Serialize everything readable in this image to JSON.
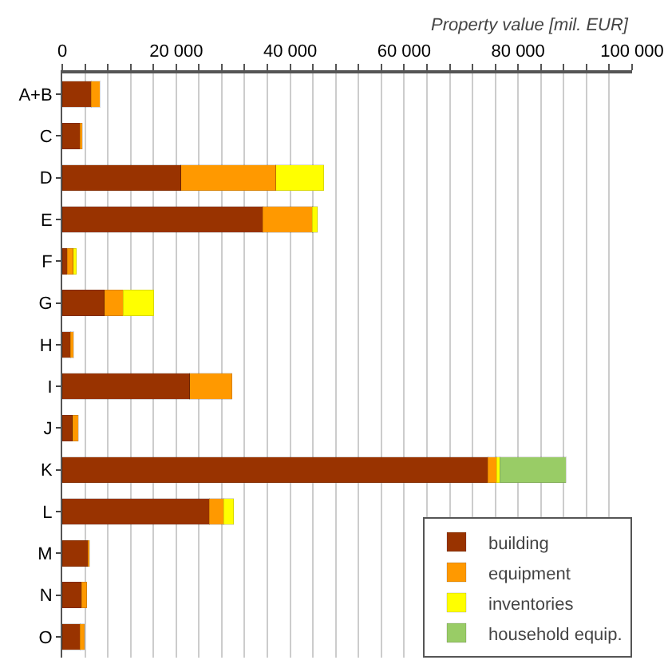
{
  "chart_data": {
    "type": "bar",
    "orientation": "horizontal",
    "stacked": true,
    "xlabel": "Property value [mil. EUR]",
    "categories": [
      "A+B",
      "C",
      "D",
      "E",
      "F",
      "G",
      "H",
      "I",
      "J",
      "K",
      "L",
      "M",
      "N",
      "O"
    ],
    "series": [
      {
        "name": "building",
        "color": "#993300",
        "values": [
          5100,
          3100,
          20800,
          35200,
          900,
          7400,
          1400,
          22400,
          1800,
          74700,
          25800,
          4500,
          3400,
          3100
        ]
      },
      {
        "name": "equipment",
        "color": "#ff9900",
        "values": [
          1500,
          400,
          16700,
          8700,
          1000,
          3300,
          600,
          7400,
          1000,
          1500,
          2500,
          300,
          900,
          800
        ]
      },
      {
        "name": "inventories",
        "color": "#ffff00",
        "values": [
          null,
          null,
          8400,
          900,
          600,
          5400,
          null,
          null,
          null,
          600,
          1800,
          null,
          null,
          null
        ]
      },
      {
        "name": "household equip.",
        "color": "#99cc66",
        "values": [
          null,
          null,
          null,
          null,
          null,
          null,
          null,
          null,
          null,
          11600,
          null,
          null,
          null,
          null
        ]
      }
    ],
    "xlim": [
      0,
      100000
    ],
    "xticks": [
      {
        "value": 0,
        "label": "0"
      },
      {
        "value": 4000,
        "label": null
      },
      {
        "value": 8000,
        "label": null
      },
      {
        "value": 12000,
        "label": null
      },
      {
        "value": 16000,
        "label": null
      },
      {
        "value": 20000,
        "label": "20 000"
      },
      {
        "value": 24000,
        "label": null
      },
      {
        "value": 28000,
        "label": null
      },
      {
        "value": 32000,
        "label": null
      },
      {
        "value": 36000,
        "label": null
      },
      {
        "value": 40000,
        "label": "40 000"
      },
      {
        "value": 44000,
        "label": null
      },
      {
        "value": 48000,
        "label": null
      },
      {
        "value": 52000,
        "label": null
      },
      {
        "value": 56000,
        "label": null
      },
      {
        "value": 60000,
        "label": "60 000"
      },
      {
        "value": 64000,
        "label": null
      },
      {
        "value": 68000,
        "label": null
      },
      {
        "value": 72000,
        "label": null
      },
      {
        "value": 76000,
        "label": null
      },
      {
        "value": 80000,
        "label": "80 000"
      },
      {
        "value": 84000,
        "label": null
      },
      {
        "value": 88000,
        "label": null
      },
      {
        "value": 92000,
        "label": null
      },
      {
        "value": 96000,
        "label": null
      },
      {
        "value": 100000,
        "label": "100 000"
      }
    ],
    "grid": "x",
    "legend": "bottom right"
  }
}
